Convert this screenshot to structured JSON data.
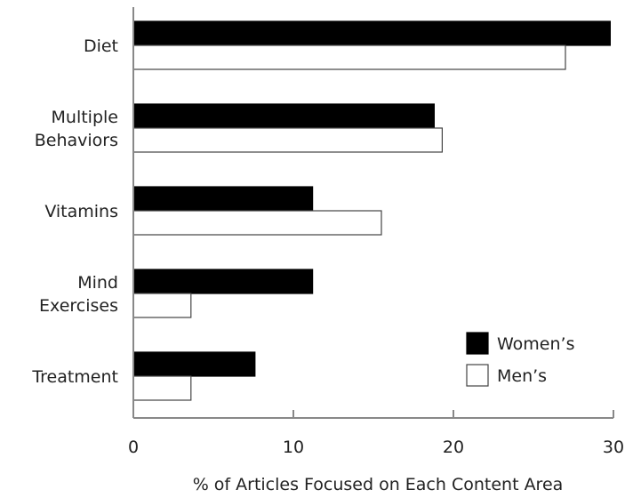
{
  "chart_data": {
    "type": "bar",
    "orientation": "horizontal",
    "categories": [
      [
        "Diet"
      ],
      [
        "Multiple",
        "Behaviors"
      ],
      [
        "Vitamins"
      ],
      [
        "Mind",
        "Exercises"
      ],
      [
        "Treatment"
      ]
    ],
    "series": [
      {
        "name": "Women’s",
        "color": "#000000",
        "values": [
          29.8,
          18.8,
          11.2,
          11.2,
          7.6
        ]
      },
      {
        "name": "Men’s",
        "color": "#ffffff",
        "values": [
          27.0,
          19.3,
          15.5,
          3.6,
          3.6
        ]
      }
    ],
    "xlabel": "% of Articles Focused on Each Content Area",
    "xlim": [
      0,
      30
    ],
    "xticks": [
      0,
      10,
      20,
      30
    ],
    "grid": false,
    "legend_position": "bottom-right"
  }
}
